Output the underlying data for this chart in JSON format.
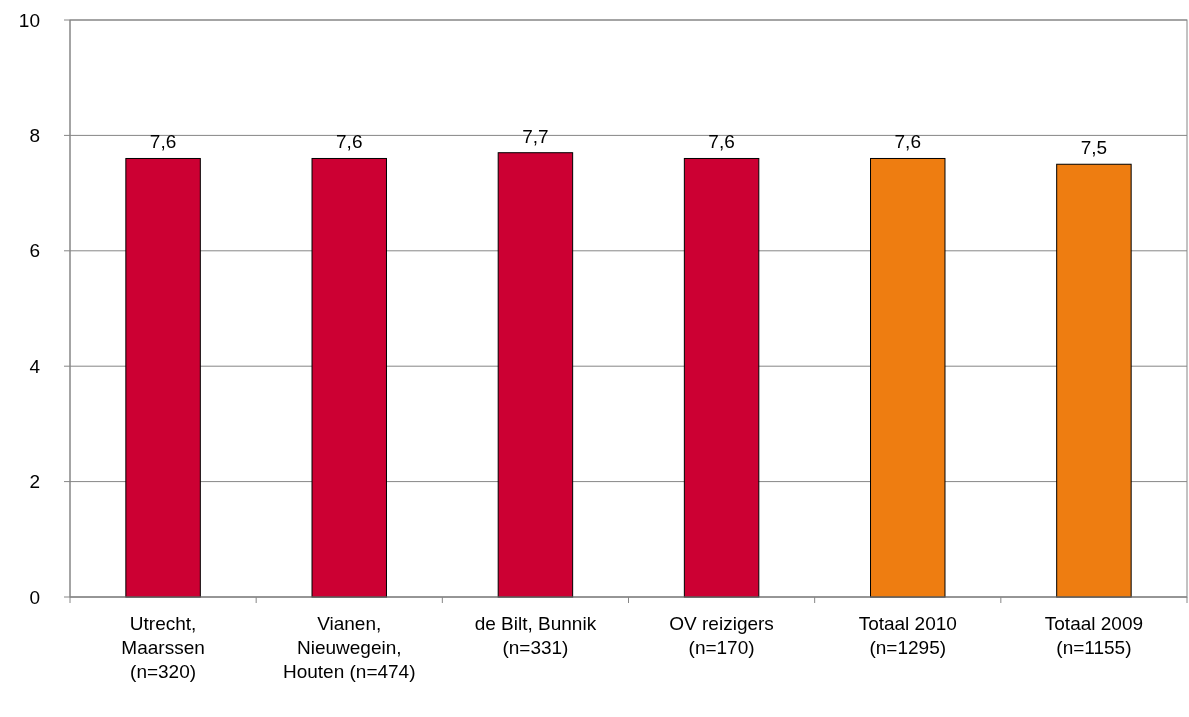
{
  "chart_data": {
    "type": "bar",
    "categories": [
      "Utrecht,\nMaarssen\n(n=320)",
      "Vianen,\nNieuwegein,\nHouten (n=474)",
      "de Bilt, Bunnik\n(n=331)",
      "OV reizigers\n(n=170)",
      "Totaal 2010\n(n=1295)",
      "Totaal 2009\n(n=1155)"
    ],
    "values": [
      7.6,
      7.6,
      7.7,
      7.6,
      7.6,
      7.5
    ],
    "colors": [
      "#cc0033",
      "#cc0033",
      "#cc0033",
      "#cc0033",
      "#ee7d11",
      "#ee7d11"
    ],
    "value_labels": [
      "7,6",
      "7,6",
      "7,7",
      "7,6",
      "7,6",
      "7,5"
    ],
    "ylim": [
      0,
      10
    ],
    "yticks": [
      0,
      2,
      4,
      6,
      8,
      10
    ],
    "grid": "y"
  }
}
